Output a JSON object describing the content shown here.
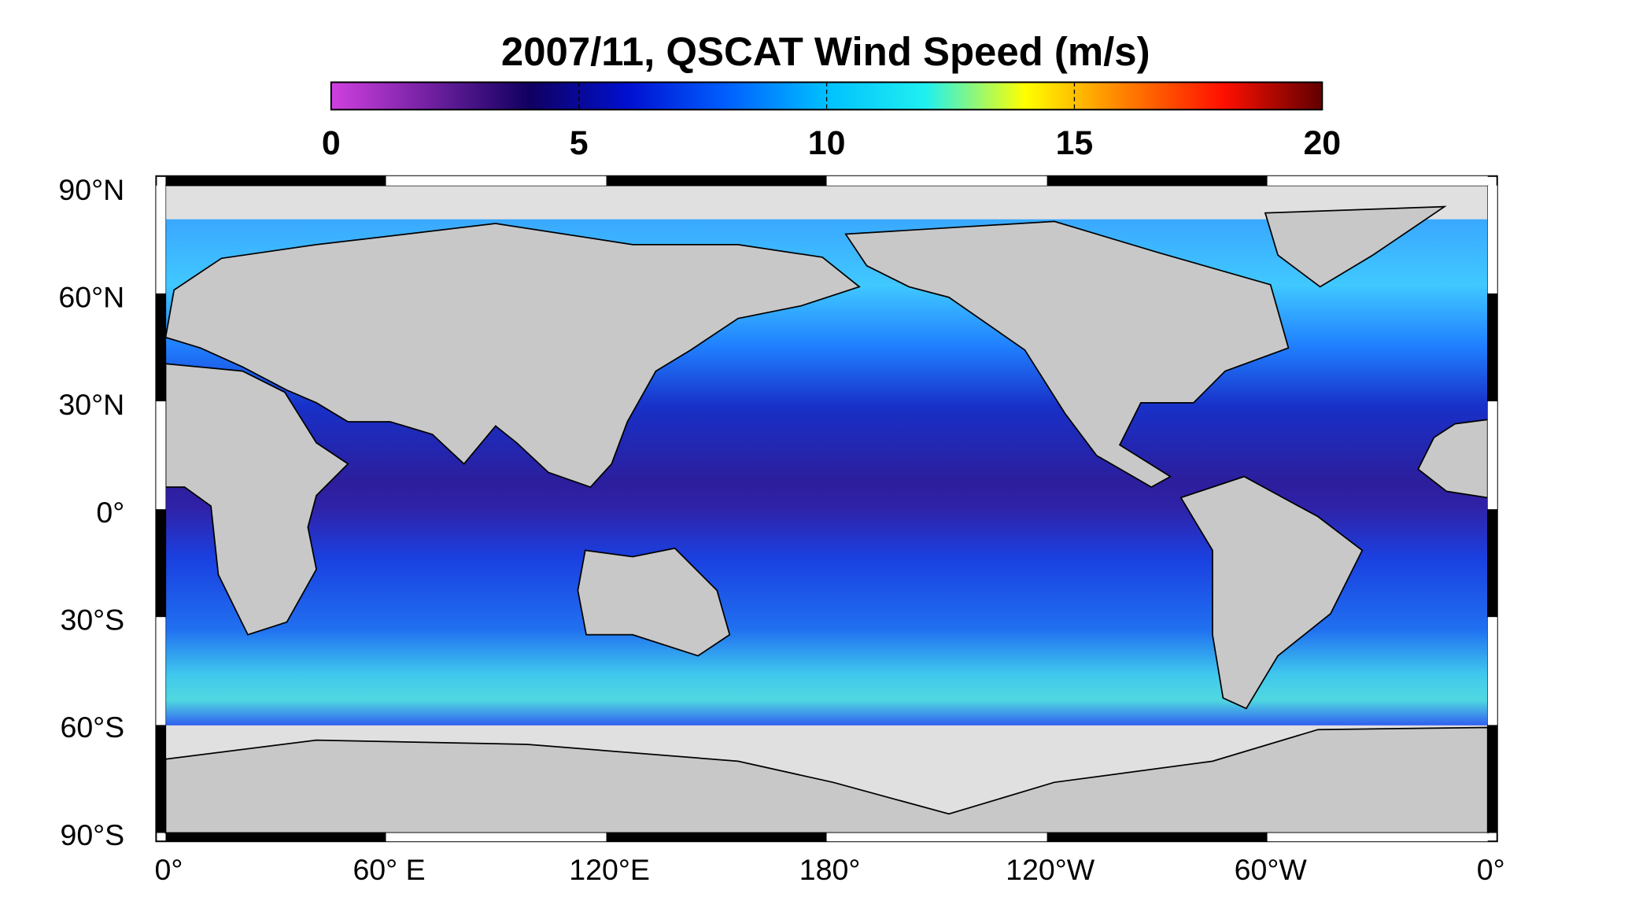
{
  "title": "2007/11,  QSCAT Wind Speed (m/s)",
  "colorbar": {
    "lim": [
      0,
      20
    ],
    "ticks": [
      0,
      5,
      10,
      15,
      20
    ],
    "colors": [
      "#d040e0",
      "#7020a0",
      "#100060",
      "#0010d0",
      "#0060ff",
      "#00c0ff",
      "#20f0f0",
      "#ffff00",
      "#ff8000",
      "#ff1000",
      "#600000"
    ]
  },
  "lat_labels": [
    "90°N",
    "60°N",
    "30°N",
    "0°",
    "30°S",
    "60°S",
    "90°S"
  ],
  "lon_labels": [
    "0°",
    "60° E",
    "120°E",
    "180°",
    "120°W",
    "60°W",
    "0°"
  ]
}
